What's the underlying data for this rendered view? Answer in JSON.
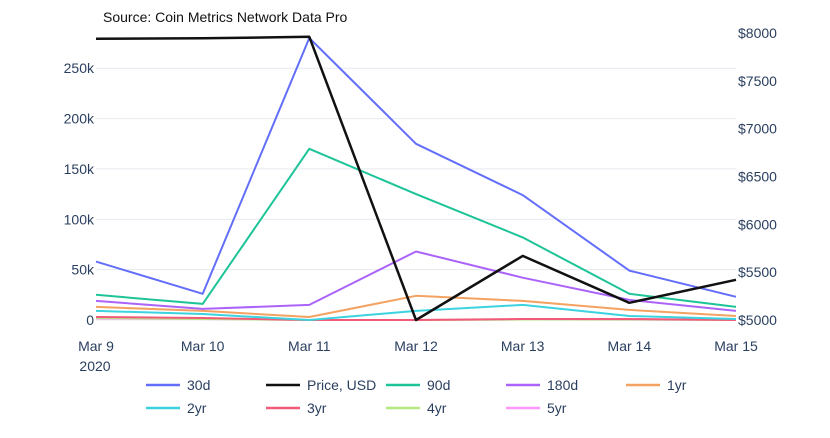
{
  "chart_data": {
    "type": "line",
    "source": "Source: Coin Metrics Network Data Pro",
    "categories": [
      "Mar 9",
      "Mar 10",
      "Mar 11",
      "Mar 12",
      "Mar 13",
      "Mar 14",
      "Mar 15"
    ],
    "x_year_label": "2020",
    "y_left": {
      "min": 0,
      "max": 280000,
      "ticks": [
        0,
        50000,
        100000,
        150000,
        200000,
        250000
      ],
      "tick_labels": [
        "0",
        "50k",
        "100k",
        "150k",
        "200k",
        "250k"
      ]
    },
    "y_right": {
      "min": 5000,
      "max": 8000,
      "ticks": [
        5000,
        5500,
        6000,
        6500,
        7000,
        7500,
        8000
      ],
      "tick_labels": [
        "$5000",
        "$5500",
        "$6000",
        "$6500",
        "$7000",
        "$7500",
        "$8000"
      ]
    },
    "grid": "horizontal",
    "legend_position": "bottom",
    "series": [
      {
        "name": "30d",
        "axis": "left",
        "color": "#636efa",
        "values": [
          58000,
          26000,
          280000,
          175000,
          124000,
          49000,
          23000
        ]
      },
      {
        "name": "Price, USD",
        "axis": "right",
        "color": "#111111",
        "values": [
          7940,
          7945,
          7960,
          5000,
          5670,
          5180,
          5420
        ]
      },
      {
        "name": "90d",
        "axis": "left",
        "color": "#1dc497",
        "values": [
          25000,
          16000,
          170000,
          125000,
          82000,
          26000,
          13000
        ]
      },
      {
        "name": "180d",
        "axis": "left",
        "color": "#ab63fa",
        "values": [
          19000,
          11000,
          15000,
          68000,
          42000,
          20000,
          9000
        ]
      },
      {
        "name": "1yr",
        "axis": "left",
        "color": "#f4a261",
        "values": [
          13000,
          9000,
          3000,
          24000,
          19000,
          10000,
          4000
        ]
      },
      {
        "name": "2yr",
        "axis": "left",
        "color": "#3cd3e0",
        "values": [
          9000,
          6000,
          0,
          9000,
          15000,
          4000,
          1000
        ]
      },
      {
        "name": "3yr",
        "axis": "left",
        "color": "#f25a7a",
        "values": [
          3000,
          2000,
          0,
          0,
          1000,
          1000,
          0
        ]
      },
      {
        "name": "4yr",
        "axis": "left",
        "color": "#b6e880",
        "values": [
          2000,
          1000,
          0,
          0,
          500,
          500,
          0
        ]
      },
      {
        "name": "5yr",
        "axis": "left",
        "color": "#ff97ff",
        "values": [
          1500,
          1000,
          0,
          0,
          500,
          300,
          0
        ]
      }
    ]
  }
}
